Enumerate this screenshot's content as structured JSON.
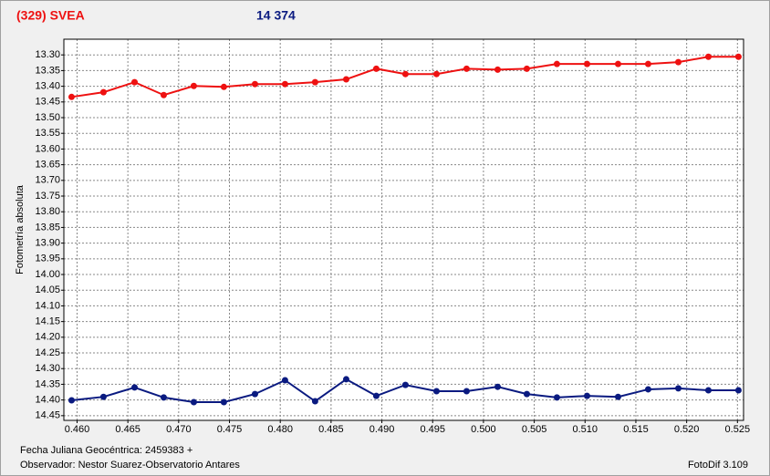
{
  "chart_data": {
    "type": "line",
    "y_label": "Fotometría absoluta",
    "x_label": "Fecha Juliana Geocéntrica: 2459383 +",
    "observer": "Observador: Nestor Suarez-Observatorio Antares",
    "software": "FotoDif 3.109",
    "grid": true,
    "y_inverted": true,
    "xlim": [
      0.4587,
      0.5256
    ],
    "ylim": [
      13.25,
      14.465
    ],
    "xticks": [
      {
        "value": 0.46,
        "label": "0.460"
      },
      {
        "value": 0.465,
        "label": "0.465"
      },
      {
        "value": 0.47,
        "label": "0.470"
      },
      {
        "value": 0.475,
        "label": "0.475"
      },
      {
        "value": 0.48,
        "label": "0.480"
      },
      {
        "value": 0.485,
        "label": "0.485"
      },
      {
        "value": 0.49,
        "label": "0.490"
      },
      {
        "value": 0.495,
        "label": "0.495"
      },
      {
        "value": 0.5,
        "label": "0.500"
      },
      {
        "value": 0.505,
        "label": "0.505"
      },
      {
        "value": 0.51,
        "label": "0.510"
      },
      {
        "value": 0.515,
        "label": "0.515"
      },
      {
        "value": 0.52,
        "label": "0.520"
      },
      {
        "value": 0.525,
        "label": "0.525"
      }
    ],
    "yticks": [
      {
        "value": 13.3,
        "label": "13.30"
      },
      13.35,
      {
        "value": 13.4,
        "label": "13.40"
      },
      13.45,
      {
        "value": 13.5,
        "label": "13.50"
      },
      13.55,
      {
        "value": 13.6,
        "label": "13.60"
      },
      13.65,
      {
        "value": 13.7,
        "label": "13.70"
      },
      13.75,
      {
        "value": 13.8,
        "label": "13.80"
      },
      13.85,
      {
        "value": 13.9,
        "label": "13.90"
      },
      13.95,
      {
        "value": 14.0,
        "label": "14.00"
      },
      14.05,
      {
        "value": 14.1,
        "label": "14.10"
      },
      14.15,
      {
        "value": 14.2,
        "label": "14.20"
      },
      14.25,
      {
        "value": 14.3,
        "label": "14.30"
      },
      14.35,
      {
        "value": 14.4,
        "label": "14.40"
      },
      14.45
    ],
    "x": [
      0.45946,
      0.4626,
      0.46566,
      0.46853,
      0.47149,
      0.47445,
      0.47751,
      0.48047,
      0.48343,
      0.48649,
      0.48945,
      0.49232,
      0.49538,
      0.49834,
      0.5014,
      0.50427,
      0.50723,
      0.5102,
      0.51325,
      0.51621,
      0.51918,
      0.52214,
      0.5251
    ],
    "series": [
      {
        "name": "(329) SVEA",
        "color": "#ee1111",
        "values": [
          13.434,
          13.419,
          13.387,
          13.428,
          13.399,
          13.402,
          13.393,
          13.393,
          13.387,
          13.378,
          13.344,
          13.361,
          13.361,
          13.344,
          13.347,
          13.344,
          13.329,
          13.329,
          13.329,
          13.329,
          13.323,
          13.306,
          13.306
        ]
      },
      {
        "name": "14 374",
        "color": "#0a1a80",
        "values": [
          14.401,
          14.39,
          14.36,
          14.392,
          14.407,
          14.407,
          14.381,
          14.337,
          14.404,
          14.334,
          14.387,
          14.352,
          14.372,
          14.372,
          14.358,
          14.381,
          14.392,
          14.387,
          14.39,
          14.366,
          14.363,
          14.369,
          14.369
        ]
      }
    ]
  }
}
